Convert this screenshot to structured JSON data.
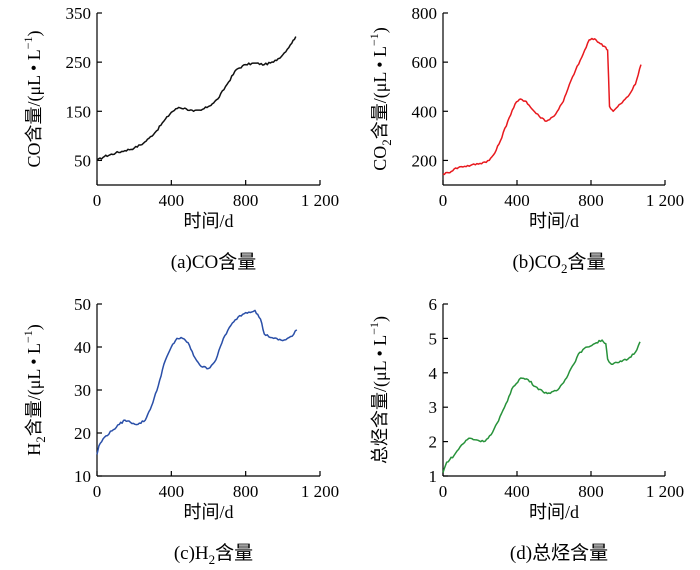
{
  "chart_data": [
    {
      "type": "line",
      "panel": "(a)",
      "caption_label": "(a)",
      "caption_text": "CO含量",
      "xlabel": "时间/d",
      "ylabel_main": "CO含量/(μL • L",
      "ylabel_sup": "−1",
      "ylabel_close": ")",
      "xlim": [
        0,
        1200
      ],
      "ylim": [
        0,
        350
      ],
      "xticks": [
        0,
        400,
        800,
        1200
      ],
      "xtick_labels": [
        "0",
        "400",
        "800",
        "1 200"
      ],
      "yticks": [
        50,
        150,
        250,
        350
      ],
      "ytick_labels": [
        "50",
        "150",
        "250",
        "350"
      ],
      "color": "#111111",
      "series": [
        {
          "x": [
            0,
            40,
            100,
            150,
            200,
            250,
            280,
            320,
            360,
            400,
            440,
            480,
            520,
            560,
            600,
            620,
            650,
            700,
            750,
            800,
            850,
            900,
            950,
            1000,
            1040,
            1070
          ],
          "y": [
            50,
            58,
            65,
            70,
            75,
            85,
            95,
            110,
            130,
            148,
            158,
            155,
            150,
            152,
            160,
            165,
            175,
            205,
            235,
            245,
            248,
            245,
            250,
            265,
            285,
            302
          ]
        }
      ]
    },
    {
      "type": "line",
      "panel": "(b)",
      "caption_label": "(b)",
      "caption_text_pre": "CO",
      "caption_sub": "2",
      "caption_text_post": "含量",
      "xlabel": "时间/d",
      "ylabel_pre": "CO",
      "ylabel_sub": "2",
      "ylabel_main": "含量/(μL • L",
      "ylabel_sup": "−1",
      "ylabel_close": ")",
      "xlim": [
        0,
        1200
      ],
      "ylim": [
        100,
        800
      ],
      "xticks": [
        0,
        400,
        800,
        1200
      ],
      "xtick_labels": [
        "0",
        "400",
        "800",
        "1 200"
      ],
      "yticks": [
        200,
        400,
        600,
        800
      ],
      "ytick_labels": [
        "200",
        "400",
        "600",
        "800"
      ],
      "color": "#e8191e",
      "series": [
        {
          "x": [
            0,
            30,
            60,
            100,
            150,
            200,
            250,
            280,
            310,
            350,
            390,
            420,
            450,
            480,
            520,
            560,
            600,
            650,
            700,
            750,
            790,
            820,
            850,
            880,
            890,
            900,
            920,
            960,
            1000,
            1040,
            1070
          ],
          "y": [
            145,
            150,
            165,
            175,
            180,
            188,
            200,
            230,
            280,
            360,
            430,
            450,
            440,
            410,
            380,
            360,
            380,
            440,
            540,
            620,
            690,
            695,
            675,
            660,
            650,
            420,
            400,
            430,
            460,
            510,
            590
          ]
        }
      ]
    },
    {
      "type": "line",
      "panel": "(c)",
      "caption_label": "(c)",
      "caption_text_pre": "H",
      "caption_sub": "2",
      "caption_text_post": "含量",
      "xlabel": "时间/d",
      "ylabel_pre": "H",
      "ylabel_sub": "2",
      "ylabel_main": "含量/(μL • L",
      "ylabel_sup": "−1",
      "ylabel_close": ")",
      "xlim": [
        0,
        1200
      ],
      "ylim": [
        10,
        50
      ],
      "xticks": [
        0,
        400,
        800,
        1200
      ],
      "xtick_labels": [
        "0",
        "400",
        "800",
        "1 200"
      ],
      "yticks": [
        10,
        20,
        30,
        40,
        50
      ],
      "ytick_labels": [
        "10",
        "20",
        "30",
        "40",
        "50"
      ],
      "color": "#2a4fa8",
      "series": [
        {
          "x": [
            0,
            10,
            40,
            80,
            120,
            150,
            180,
            220,
            260,
            280,
            300,
            330,
            360,
            400,
            430,
            460,
            490,
            520,
            560,
            600,
            640,
            680,
            720,
            760,
            800,
            850,
            880,
            900,
            950,
            1000,
            1050,
            1075
          ],
          "y": [
            15,
            17,
            19,
            20.5,
            22,
            23,
            22.5,
            22,
            23,
            25,
            27,
            31,
            36,
            40,
            42,
            42,
            41,
            38,
            35.5,
            35,
            37,
            42,
            45,
            47,
            48,
            48.5,
            46.5,
            43,
            42,
            41.5,
            42.5,
            44
          ]
        }
      ]
    },
    {
      "type": "line",
      "panel": "(d)",
      "caption_label": "(d)",
      "caption_text": "总烃含量",
      "xlabel": "时间/d",
      "ylabel_main": "总烃含量/(μL • L",
      "ylabel_sup": "−1",
      "ylabel_close": ")",
      "xlim": [
        0,
        1200
      ],
      "ylim": [
        1,
        6
      ],
      "xticks": [
        0,
        400,
        800,
        1200
      ],
      "xtick_labels": [
        "0",
        "400",
        "800",
        "1 200"
      ],
      "yticks": [
        1,
        2,
        3,
        4,
        5,
        6
      ],
      "ytick_labels": [
        "1",
        "2",
        "3",
        "4",
        "5",
        "6"
      ],
      "color": "#27923a",
      "series": [
        {
          "x": [
            0,
            20,
            60,
            100,
            140,
            180,
            220,
            260,
            300,
            340,
            380,
            420,
            460,
            500,
            540,
            580,
            620,
            660,
            700,
            740,
            780,
            820,
            860,
            880,
            890,
            910,
            950,
            1000,
            1040,
            1065
          ],
          "y": [
            1.1,
            1.4,
            1.6,
            1.9,
            2.1,
            2.05,
            2.0,
            2.2,
            2.6,
            3.1,
            3.6,
            3.85,
            3.8,
            3.6,
            3.45,
            3.4,
            3.5,
            3.8,
            4.2,
            4.6,
            4.75,
            4.85,
            4.95,
            4.85,
            4.4,
            4.25,
            4.3,
            4.4,
            4.6,
            4.9
          ]
        }
      ]
    }
  ]
}
